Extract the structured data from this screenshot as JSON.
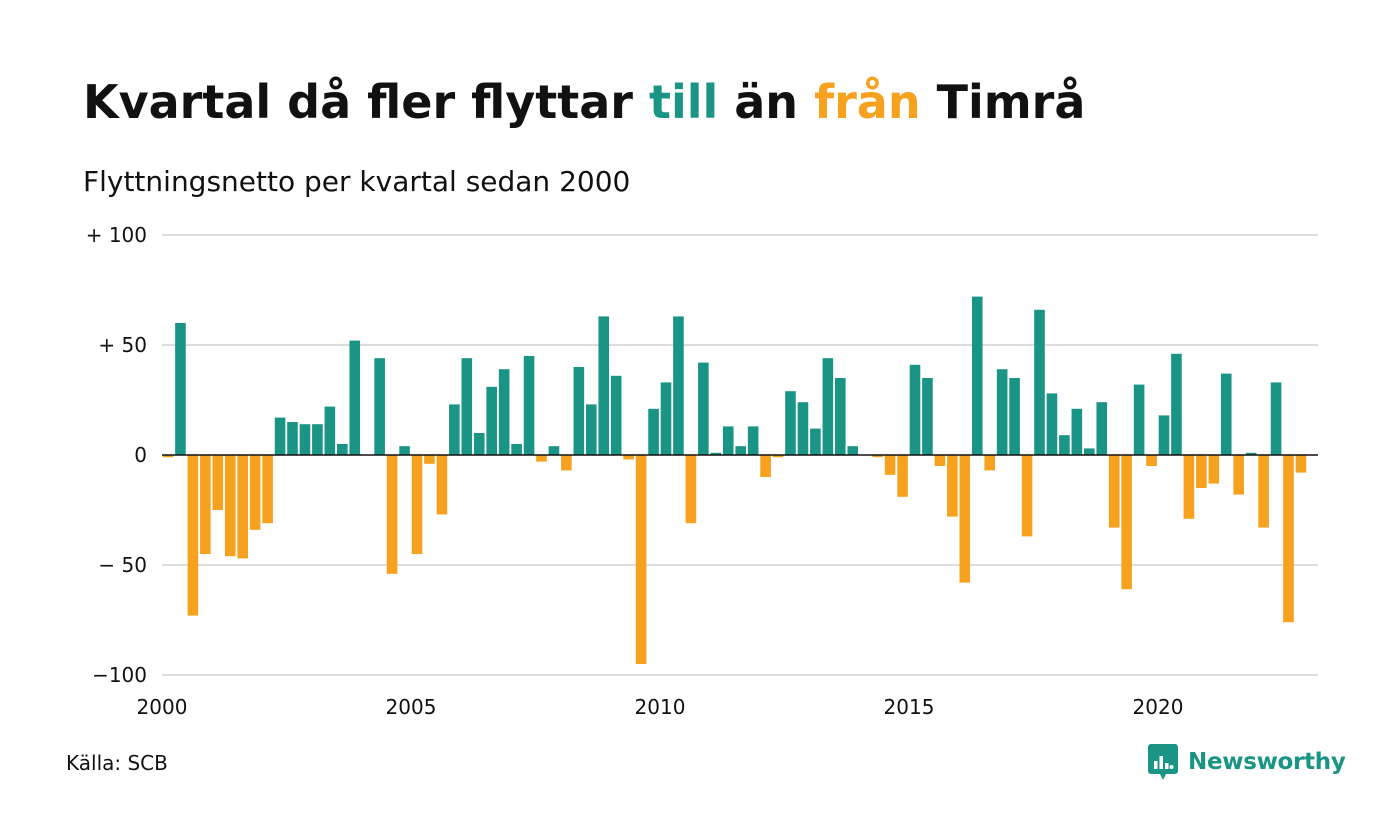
{
  "title": {
    "before": "Kvartal då fler flyttar ",
    "till": "till",
    "between": " än ",
    "fran": "från",
    "after": " Timrå"
  },
  "subtitle": "Flyttningsnetto per kvartal sedan 2000",
  "source": "Källa: SCB",
  "brand": {
    "name": "Newsworthy",
    "icon": "newsworthy-logo-icon"
  },
  "colors": {
    "positive": "#1a9585",
    "negative": "#f6a21e",
    "grid": "#dddddd",
    "zero_line": "#111111"
  },
  "chart_data": {
    "type": "bar",
    "title": "Kvartal då fler flyttar till än från Timrå",
    "subtitle": "Flyttningsnetto per kvartal sedan 2000",
    "x_start": {
      "year": 2000,
      "quarter": 1
    },
    "x_ticks": [
      "2000",
      "2005",
      "2010",
      "2015",
      "2020"
    ],
    "y_ticks": [
      {
        "value": 100,
        "label": "+ 100"
      },
      {
        "value": 50,
        "label": "+  50"
      },
      {
        "value": 0,
        "label": "0"
      },
      {
        "value": -50,
        "label": "− 50"
      },
      {
        "value": -100,
        "label": "−100"
      }
    ],
    "ylim": [
      -100,
      100
    ],
    "grid": true,
    "values": [
      -1,
      60,
      -73,
      -45,
      -25,
      -46,
      -47,
      -34,
      -31,
      17,
      15,
      14,
      14,
      22,
      5,
      52,
      0,
      44,
      -54,
      4,
      -45,
      -4,
      -27,
      23,
      44,
      10,
      31,
      39,
      5,
      45,
      -3,
      4,
      -7,
      40,
      23,
      63,
      36,
      -2,
      -95,
      21,
      33,
      63,
      -31,
      42,
      1,
      13,
      4,
      13,
      -10,
      -1,
      29,
      24,
      12,
      44,
      35,
      4,
      0,
      -1,
      -9,
      -19,
      41,
      35,
      -5,
      -28,
      -58,
      72,
      -7,
      39,
      35,
      -37,
      66,
      28,
      9,
      21,
      3,
      24,
      -33,
      -61,
      32,
      -5,
      18,
      46,
      -29,
      -15,
      -13,
      37,
      -18,
      1,
      -33,
      33,
      -76,
      -8
    ]
  }
}
